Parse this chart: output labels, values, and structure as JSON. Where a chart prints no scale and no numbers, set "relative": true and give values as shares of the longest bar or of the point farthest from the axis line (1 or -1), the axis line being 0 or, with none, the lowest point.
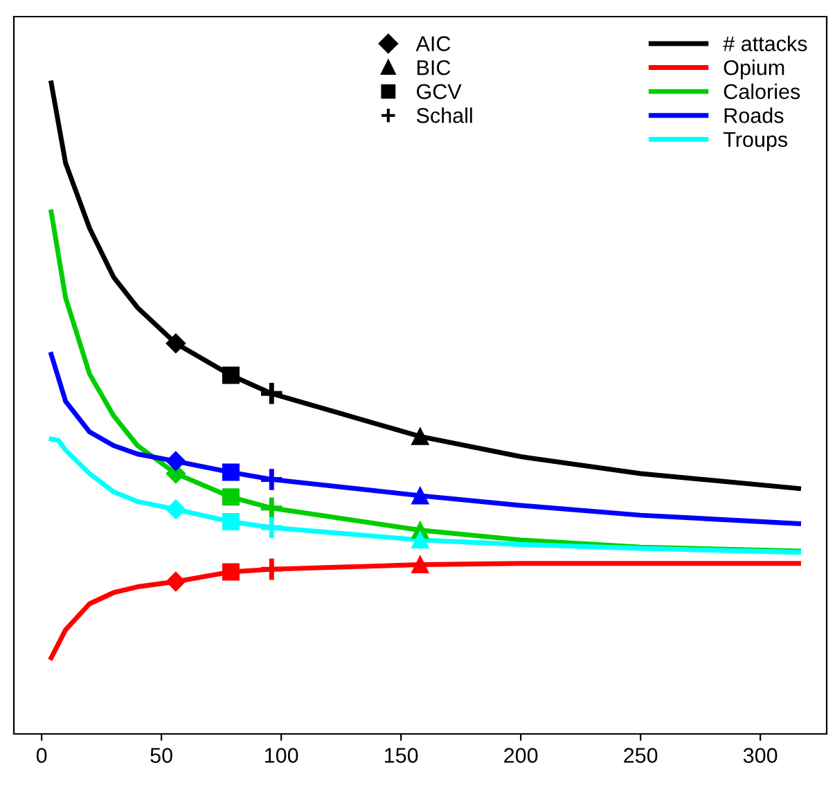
{
  "chart_data": {
    "type": "line",
    "relative": true,
    "xlim": [
      -11.6,
      327.7
    ],
    "xticks": [
      0,
      50,
      100,
      150,
      200,
      250,
      300
    ],
    "legend": "top right",
    "grid": false,
    "line_style": "solid",
    "marker": "none",
    "series": [
      {
        "name": "# attacks",
        "color": "#000000",
        "x": [
          4,
          10,
          20,
          30,
          40,
          56,
          79,
          96,
          158,
          200,
          250,
          316
        ],
        "values": [
          1.0,
          0.877,
          0.777,
          0.702,
          0.655,
          0.6,
          0.551,
          0.523,
          0.457,
          0.426,
          0.4,
          0.377
        ]
      },
      {
        "name": "Opium",
        "color": "#ff0000",
        "x": [
          4,
          10,
          20,
          30,
          40,
          56,
          79,
          96,
          158,
          200,
          250,
          316
        ],
        "values": [
          0.117,
          0.16,
          0.2,
          0.217,
          0.226,
          0.234,
          0.249,
          0.253,
          0.26,
          0.262,
          0.262,
          0.262
        ]
      },
      {
        "name": "Calories",
        "color": "#00cd00",
        "x": [
          4,
          10,
          20,
          30,
          40,
          56,
          79,
          96,
          158,
          200,
          250,
          316
        ],
        "values": [
          0.802,
          0.67,
          0.553,
          0.489,
          0.443,
          0.4,
          0.364,
          0.347,
          0.313,
          0.298,
          0.287,
          0.281
        ]
      },
      {
        "name": "Roads",
        "color": "#0000ff",
        "x": [
          4,
          10,
          20,
          30,
          40,
          56,
          79,
          96,
          158,
          200,
          250,
          316
        ],
        "values": [
          0.583,
          0.511,
          0.464,
          0.443,
          0.43,
          0.419,
          0.402,
          0.391,
          0.366,
          0.351,
          0.336,
          0.323
        ]
      },
      {
        "name": "Troups",
        "color": "#00ffff",
        "x": [
          4,
          7,
          10,
          20,
          30,
          40,
          56,
          79,
          96,
          158,
          200,
          250,
          316
        ],
        "values": [
          0.453,
          0.451,
          0.436,
          0.4,
          0.372,
          0.357,
          0.345,
          0.326,
          0.317,
          0.298,
          0.291,
          0.285,
          0.279
        ]
      },
      {
        "name": "AIC",
        "type": "scatter",
        "marker": "diamond",
        "color": "#000000",
        "x": [
          56,
          56,
          56,
          56,
          56
        ],
        "values": [
          0.6,
          0.234,
          0.4,
          0.419,
          0.345
        ],
        "colors": [
          "#000000",
          "#ff0000",
          "#00cd00",
          "#0000ff",
          "#00ffff"
        ]
      },
      {
        "name": "BIC",
        "type": "scatter",
        "marker": "triangle",
        "color": "#000000",
        "x": [
          158,
          158,
          158,
          158,
          158
        ],
        "values": [
          0.457,
          0.26,
          0.313,
          0.366,
          0.298
        ],
        "colors": [
          "#000000",
          "#ff0000",
          "#00cd00",
          "#0000ff",
          "#00ffff"
        ]
      },
      {
        "name": "GCV",
        "type": "scatter",
        "marker": "square",
        "color": "#000000",
        "x": [
          79,
          79,
          79,
          79,
          79
        ],
        "values": [
          0.551,
          0.249,
          0.364,
          0.402,
          0.326
        ],
        "colors": [
          "#000000",
          "#ff0000",
          "#00cd00",
          "#0000ff",
          "#00ffff"
        ]
      },
      {
        "name": "Schall",
        "type": "scatter",
        "marker": "cross",
        "color": "#000000",
        "x": [
          96,
          96,
          96,
          96,
          96
        ],
        "values": [
          0.523,
          0.253,
          0.347,
          0.391,
          0.317
        ],
        "colors": [
          "#000000",
          "#ff0000",
          "#00cd00",
          "#0000ff",
          "#00ffff"
        ]
      }
    ]
  }
}
